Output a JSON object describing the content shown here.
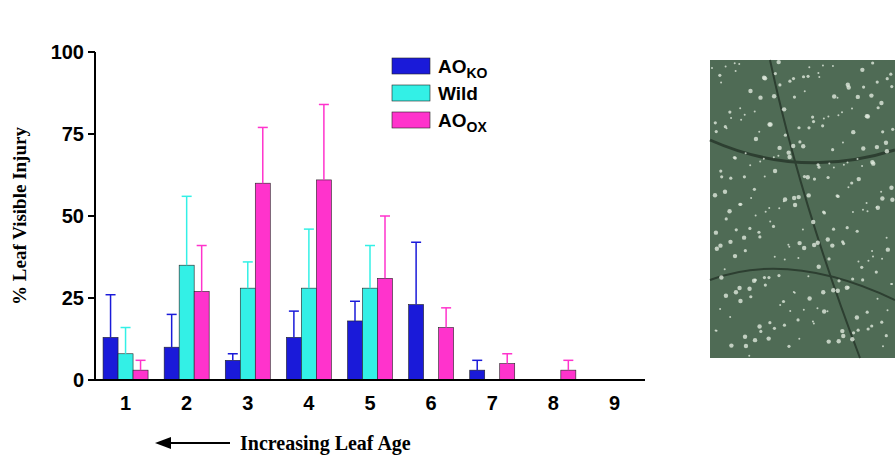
{
  "chart_data": {
    "type": "bar",
    "y_label": "% Leaf Visible Injury",
    "x_label": "Increasing Leaf Age",
    "categories": [
      "1",
      "2",
      "3",
      "4",
      "5",
      "6",
      "7",
      "8",
      "9"
    ],
    "series": [
      {
        "name": "AOKO",
        "color": "#1a1ad9",
        "values": [
          13,
          10,
          6,
          13,
          18,
          23,
          3,
          0,
          0
        ],
        "errors": [
          13,
          10,
          2,
          8,
          6,
          19,
          3,
          0,
          0
        ]
      },
      {
        "name": "Wild",
        "color": "#33f0e6",
        "values": [
          8,
          35,
          28,
          28,
          28,
          0,
          0,
          0,
          0
        ],
        "errors": [
          8,
          21,
          8,
          18,
          13,
          0,
          0,
          0,
          0
        ]
      },
      {
        "name": "AOOX",
        "color": "#ff33cc",
        "values": [
          3,
          27,
          60,
          61,
          31,
          16,
          5,
          3,
          0
        ],
        "errors": [
          3,
          14,
          17,
          23,
          19,
          6,
          3,
          3,
          0
        ]
      }
    ],
    "ylim": [
      0,
      100
    ],
    "yticks": [
      0,
      25,
      50,
      75,
      100
    ],
    "legend": "top-right",
    "grid": false
  }
}
